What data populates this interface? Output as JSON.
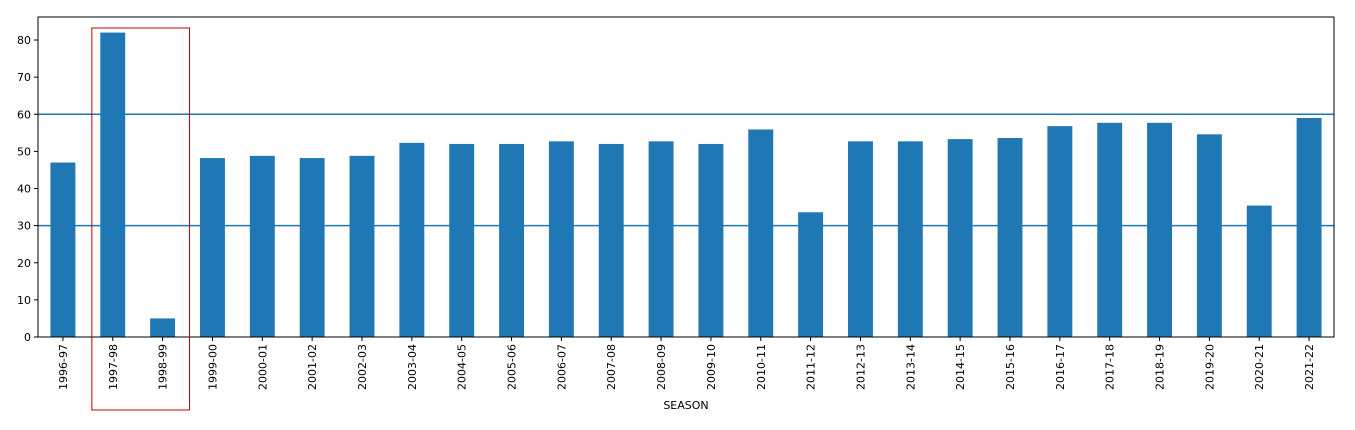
{
  "chart_data": {
    "type": "bar",
    "xlabel": "SEASON",
    "ylabel": "",
    "title": "",
    "ylim": [
      0,
      86.2
    ],
    "yticks": [
      0,
      10,
      20,
      30,
      40,
      50,
      60,
      70,
      80
    ],
    "categories": [
      "1996-97",
      "1997-98",
      "1998-99",
      "1999-00",
      "2000-01",
      "2001-02",
      "2002-03",
      "2003-04",
      "2004-05",
      "2005-06",
      "2006-07",
      "2007-08",
      "2008-09",
      "2009-10",
      "2010-11",
      "2011-12",
      "2012-13",
      "2013-14",
      "2014-15",
      "2015-16",
      "2016-17",
      "2017-18",
      "2018-19",
      "2019-20",
      "2020-21",
      "2021-22"
    ],
    "values": [
      47,
      82,
      5,
      48.2,
      48.8,
      48.2,
      48.8,
      52.3,
      52,
      52,
      52.7,
      52,
      52.7,
      52,
      55.9,
      33.6,
      52.7,
      52.7,
      53.3,
      53.6,
      56.8,
      57.7,
      57.7,
      54.6,
      35.4,
      59
    ],
    "hlines": [
      60,
      30
    ],
    "bar_color": "#1f77b4",
    "hline_color": "#1f77b4",
    "highlight": {
      "categories": [
        "1997-98",
        "1998-99"
      ],
      "color": "#c00000"
    }
  }
}
